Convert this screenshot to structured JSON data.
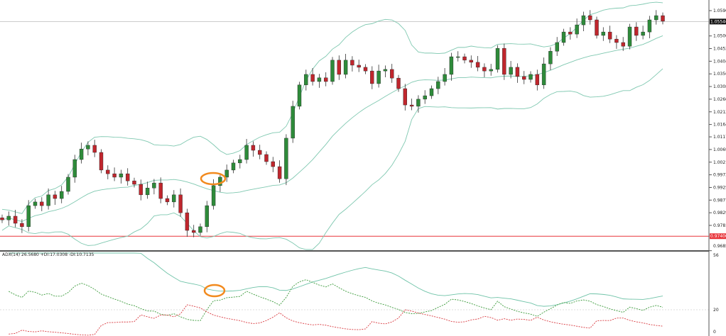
{
  "chart_data": {
    "type": "candlestick",
    "instrument_note": "",
    "price_axis": {
      "ylim": [
        0.9677,
        1.063
      ],
      "tick_labels": [
        "1.05960",
        "1.05000",
        "1.04520",
        "1.04040",
        "1.03560",
        "1.03080",
        "1.02600",
        "1.02120",
        "1.01640",
        "1.01170",
        "1.00690",
        "1.00210",
        "0.99730",
        "0.99250",
        "0.98770",
        "0.98290",
        "0.97810",
        "0.96850"
      ],
      "current_price_label": "1.05546",
      "current_price": 1.05546,
      "level_line_label": "0.97400",
      "level_line": 0.974
    },
    "closes": [
      0.9802,
      0.9816,
      0.9789,
      0.9776,
      0.9856,
      0.987,
      0.9856,
      0.9897,
      0.9883,
      0.991,
      0.9964,
      1.0031,
      1.0071,
      1.0085,
      1.0058,
      0.9991,
      0.9977,
      0.9964,
      0.9977,
      0.995,
      0.9937,
      0.9897,
      0.9923,
      0.9942,
      0.9883,
      0.987,
      0.9897,
      0.9829,
      0.9762,
      0.9754,
      0.9776,
      0.9856,
      0.9932,
      0.9964,
      0.9991,
      1.0018,
      1.0031,
      1.0085,
      1.0066,
      1.005,
      1.0023,
      1.0004,
      0.9958,
      1.0112,
      1.0233,
      1.0314,
      1.0354,
      1.0327,
      1.0341,
      1.0327,
      1.0408,
      1.0354,
      1.0408,
      1.0389,
      1.0381,
      1.0367,
      1.0319,
      1.0367,
      1.0373,
      1.034,
      1.03,
      1.0238,
      1.0233,
      1.026,
      1.0273,
      1.03,
      1.0327,
      1.0354,
      1.0421,
      1.0421,
      1.0408,
      1.04,
      1.0381,
      1.0367,
      1.0373,
      1.0453,
      1.0354,
      1.0381,
      1.0346,
      1.0335,
      1.0354,
      1.0314,
      1.0394,
      1.0442,
      1.0475,
      1.0515,
      1.0507,
      1.0542,
      1.0577,
      1.0561,
      1.0502,
      1.0515,
      1.0488,
      1.0475,
      1.0461,
      1.0534,
      1.0502,
      1.0515,
      1.0561,
      1.0577,
      1.0556
    ],
    "indicators": {
      "bollinger": {
        "period": 20,
        "deviations": 2
      },
      "adx_label": "ADX(14) 26.5680 +DI:17.0308 -DI:10.7135",
      "adx_axis": {
        "ylim": [
          0,
          56
        ],
        "tick_labels": [
          "56",
          "20",
          "0"
        ],
        "level": 20
      }
    },
    "colors": {
      "bull": "#2e8b3a",
      "bear": "#c0262d",
      "bands": "#7fc8b0",
      "adx": "#6fc3a8",
      "plus_di": "#3a9a3a",
      "minus_di": "#d9393f",
      "level_line": "#e8353b",
      "annotation": "#f28a1e"
    }
  }
}
